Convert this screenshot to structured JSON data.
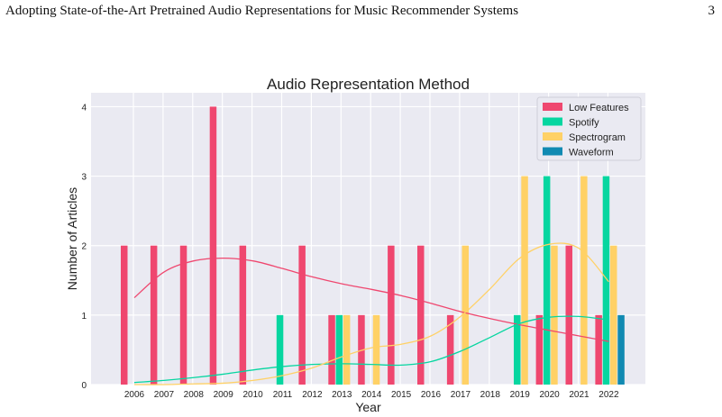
{
  "header": {
    "running_title": "Adopting State-of-the-Art Pretrained Audio Representations for Music Recommender Systems",
    "page_number": "3"
  },
  "chart_data": {
    "type": "bar",
    "title": "Audio Representation Method",
    "xlabel": "Year",
    "ylabel": "Number of Articles",
    "ylim": [
      0,
      4.2
    ],
    "yticks": [
      "0",
      "1",
      "2",
      "3",
      "4"
    ],
    "grid": true,
    "legend_position": "top-right",
    "categories": [
      "2006",
      "2007",
      "2008",
      "2009",
      "2010",
      "2011",
      "2012",
      "2013",
      "2014",
      "2015",
      "2016",
      "2017",
      "2018",
      "2019",
      "2020",
      "2021",
      "2022"
    ],
    "series": [
      {
        "name": "Low Features",
        "color": "#ef476f",
        "values": [
          2,
          2,
          2,
          4,
          2,
          0,
          2,
          1,
          1,
          2,
          2,
          1,
          0,
          0,
          1,
          2,
          1
        ]
      },
      {
        "name": "Spotify",
        "color": "#06d6a0",
        "values": [
          0,
          0,
          0,
          0,
          0,
          1,
          0,
          1,
          0,
          0,
          0,
          0,
          0,
          1,
          3,
          0,
          3
        ]
      },
      {
        "name": "Spectrogram",
        "color": "#ffd166",
        "values": [
          0,
          0,
          0,
          0,
          0,
          0,
          0,
          1,
          1,
          0,
          0,
          2,
          0,
          3,
          2,
          3,
          2
        ]
      },
      {
        "name": "Waveform",
        "color": "#118ab2",
        "values": [
          0,
          0,
          0,
          0,
          0,
          0,
          0,
          0,
          0,
          0,
          0,
          0,
          0,
          0,
          0,
          0,
          1
        ]
      }
    ],
    "trend_curves": [
      {
        "series": "Low Features",
        "color": "#ef476f",
        "values": [
          1.25,
          1.62,
          1.78,
          1.82,
          1.78,
          1.67,
          1.55,
          1.45,
          1.37,
          1.28,
          1.17,
          1.05,
          0.95,
          0.86,
          0.78,
          0.7,
          0.62
        ]
      },
      {
        "series": "Spotify",
        "color": "#06d6a0",
        "values": [
          0.03,
          0.06,
          0.1,
          0.15,
          0.21,
          0.26,
          0.29,
          0.3,
          0.29,
          0.28,
          0.33,
          0.48,
          0.68,
          0.88,
          0.97,
          0.98,
          0.93
        ]
      },
      {
        "series": "Spectrogram",
        "color": "#ffd166",
        "values": [
          0.0,
          0.0,
          0.01,
          0.02,
          0.06,
          0.13,
          0.24,
          0.4,
          0.53,
          0.58,
          0.7,
          0.98,
          1.38,
          1.82,
          2.02,
          1.96,
          1.48
        ]
      }
    ]
  }
}
